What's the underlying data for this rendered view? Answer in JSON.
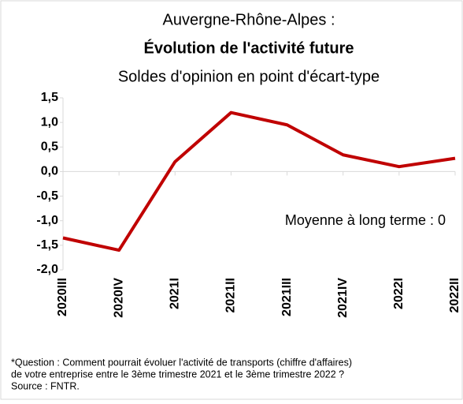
{
  "chart_data": {
    "type": "line",
    "title": "Auvergne-Rhône-Alpes :",
    "subtitle": "Évolution de l'activité future",
    "subtitle2": "Soldes d'opinion en point d'écart-type",
    "annotation": "Moyenne à long terme : 0",
    "categories": [
      "2020III",
      "2020IV",
      "2021I",
      "2021II",
      "2021III",
      "2021IV",
      "2022I",
      "2022II"
    ],
    "series": [
      {
        "name": "Soldes d'opinion",
        "color": "#c00000",
        "values": [
          -1.35,
          -1.6,
          0.2,
          1.2,
          0.95,
          0.34,
          0.1,
          0.27
        ]
      }
    ],
    "ylim": [
      -2.0,
      1.5
    ],
    "yticks": [
      {
        "value": 1.5,
        "label": "1,5"
      },
      {
        "value": 1.0,
        "label": "1,0"
      },
      {
        "value": 0.5,
        "label": "0,5"
      },
      {
        "value": 0.0,
        "label": "0,0"
      },
      {
        "value": -0.5,
        "label": "-0,5"
      },
      {
        "value": -1.0,
        "label": "-1,0"
      },
      {
        "value": -1.5,
        "label": "-1,5"
      },
      {
        "value": -2.0,
        "label": "-2,0"
      }
    ],
    "grid": false,
    "footnote": [
      "*Question : Comment pourrait évoluer l'activité de transports (chiffre d'affaires)",
      "de votre entreprise entre le 3ème trimestre 2021 et le 3ème trimestre 2022 ?",
      "Source : FNTR."
    ]
  }
}
